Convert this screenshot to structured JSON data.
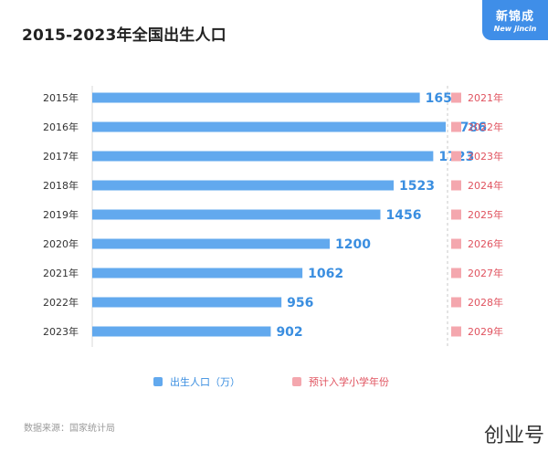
{
  "title": "2015-2023年全国出生人口",
  "brand": {
    "name": "新锦成",
    "sub": "New jincin"
  },
  "source": "数据来源：国家统计局",
  "watermark": "创业号",
  "chart_data": {
    "type": "bar",
    "orientation": "horizontal",
    "categories": [
      "2015年",
      "2016年",
      "2017年",
      "2018年",
      "2019年",
      "2020年",
      "2021年",
      "2022年",
      "2023年"
    ],
    "series": [
      {
        "name": "出生人口（万）",
        "values": [
          1655,
          1786,
          1723,
          1523,
          1456,
          1200,
          1062,
          956,
          902
        ],
        "color": "#62a9ee"
      }
    ],
    "school_years": [
      "2021年",
      "2022年",
      "2023年",
      "2024年",
      "2025年",
      "2026年",
      "2027年",
      "2028年",
      "2029年"
    ],
    "school_legend": "预计入学小学年份",
    "school_color": "#f4a7ae",
    "school_text_color": "#e0535f",
    "value_color": "#3a8ee0",
    "legend_position": "bottom",
    "grid": false
  }
}
